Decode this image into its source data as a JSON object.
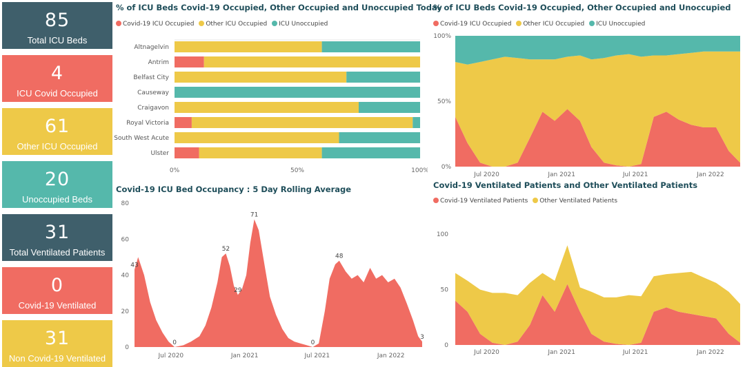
{
  "colors": {
    "covid": "#f06c62",
    "other": "#eec948",
    "unoccupied": "#55b8ab",
    "navy": "#3f5f6b"
  },
  "kpis": [
    {
      "value": "85",
      "label": "Total ICU Beds",
      "color": "#3f5f6b"
    },
    {
      "value": "4",
      "label": "ICU Covid Occupied",
      "color": "#f06c62"
    },
    {
      "value": "61",
      "label": "Other ICU Occupied",
      "color": "#eec948"
    },
    {
      "value": "20",
      "label": "Unoccupied Beds",
      "color": "#55b8ab"
    },
    {
      "value": "31",
      "label": "Total Ventilated Patients",
      "color": "#3f5f6b"
    },
    {
      "value": "0",
      "label": "Covid-19 Ventilated",
      "color": "#f06c62"
    },
    {
      "value": "31",
      "label": "Non Covid-19 Ventilated",
      "color": "#eec948"
    }
  ],
  "panels": {
    "today": {
      "title": "% of ICU Beds Covid-19 Occupied, Other Occupied and Unoccupied Today",
      "legend": [
        "Covid-19 ICU Occupied",
        "Other ICU Occupied",
        "ICU Unoccupied"
      ]
    },
    "overtime": {
      "title": "% of ICU Beds Covid-19 Occupied, Other Occupied and Unoccupied",
      "legend": [
        "Covid-19 ICU Occupied",
        "Other ICU Occupied",
        "ICU Unoccupied"
      ]
    },
    "rolling": {
      "title": "Covid-19 ICU Bed Occupancy : 5 Day Rolling Average"
    },
    "ventilated": {
      "title": "Covid-19 Ventilated Patients and Other Ventilated Patients",
      "legend": [
        "Covid-19 Ventilated Patients",
        "Other Ventilated Patients"
      ]
    }
  },
  "chart_data": [
    {
      "type": "bar",
      "orientation": "horizontal",
      "stacked": "100%",
      "title": "% of ICU Beds Covid-19 Occupied, Other Occupied and Unoccupied Today",
      "categories": [
        "Altnagelvin",
        "Antrim",
        "Belfast City",
        "Causeway",
        "Craigavon",
        "Royal Victoria",
        "South West Acute",
        "Ulster"
      ],
      "series": [
        {
          "name": "Covid-19 ICU Occupied",
          "values": [
            0,
            12,
            0,
            0,
            0,
            7,
            0,
            10
          ]
        },
        {
          "name": "Other ICU Occupied",
          "values": [
            60,
            88,
            70,
            0,
            75,
            90,
            67,
            50
          ]
        },
        {
          "name": "ICU Unoccupied",
          "values": [
            40,
            0,
            30,
            100,
            25,
            3,
            33,
            40
          ]
        }
      ],
      "xticks": [
        "0%",
        "50%",
        "100%"
      ],
      "xlim": [
        0,
        100
      ],
      "legend": "top-left"
    },
    {
      "type": "area",
      "stacked": "100%",
      "title": "% of ICU Beds Covid-19 Occupied, Other Occupied and Unoccupied",
      "x": [
        "2020-04",
        "2020-05",
        "2020-06",
        "2020-07",
        "2020-08",
        "2020-09",
        "2020-10",
        "2020-11",
        "2020-12",
        "2021-01",
        "2021-02",
        "2021-03",
        "2021-04",
        "2021-05",
        "2021-06",
        "2021-07",
        "2021-08",
        "2021-09",
        "2021-10",
        "2021-11",
        "2021-12",
        "2022-01",
        "2022-02",
        "2022-03"
      ],
      "series": [
        {
          "name": "Covid-19 ICU Occupied",
          "values": [
            38,
            18,
            3,
            0,
            0,
            3,
            22,
            42,
            35,
            44,
            35,
            15,
            3,
            1,
            0,
            2,
            38,
            42,
            36,
            32,
            30,
            30,
            12,
            3
          ]
        },
        {
          "name": "Other ICU Occupied",
          "values": [
            42,
            60,
            77,
            82,
            84,
            80,
            60,
            40,
            47,
            40,
            50,
            67,
            80,
            84,
            86,
            82,
            47,
            43,
            50,
            55,
            58,
            58,
            76,
            85
          ]
        },
        {
          "name": "ICU Unoccupied",
          "values": [
            20,
            22,
            20,
            18,
            16,
            17,
            18,
            18,
            18,
            16,
            15,
            18,
            17,
            15,
            14,
            16,
            15,
            15,
            14,
            13,
            12,
            12,
            12,
            12
          ]
        }
      ],
      "yticks": [
        "0%",
        "50%",
        "100%"
      ],
      "xticks": [
        "Jul 2020",
        "Jan 2021",
        "Jul 2021",
        "Jan 2022"
      ],
      "legend": "top-left"
    },
    {
      "type": "area",
      "title": "Covid-19 ICU Bed Occupancy : 5 Day Rolling Average",
      "x": [
        "2020-04-01",
        "2020-04-10",
        "2020-04-25",
        "2020-05-10",
        "2020-05-25",
        "2020-06-10",
        "2020-06-25",
        "2020-07-10",
        "2020-08-01",
        "2020-08-20",
        "2020-09-10",
        "2020-09-25",
        "2020-10-10",
        "2020-10-25",
        "2020-11-05",
        "2020-11-15",
        "2020-11-25",
        "2020-12-05",
        "2020-12-15",
        "2020-12-25",
        "2021-01-05",
        "2021-01-15",
        "2021-01-25",
        "2021-02-05",
        "2021-02-20",
        "2021-03-05",
        "2021-03-20",
        "2021-04-05",
        "2021-04-20",
        "2021-05-05",
        "2021-05-20",
        "2021-06-05",
        "2021-06-20",
        "2021-07-05",
        "2021-07-20",
        "2021-08-01",
        "2021-08-15",
        "2021-08-25",
        "2021-09-10",
        "2021-09-25",
        "2021-10-10",
        "2021-10-25",
        "2021-11-10",
        "2021-11-25",
        "2021-12-10",
        "2021-12-25",
        "2022-01-10",
        "2022-01-25",
        "2022-02-10",
        "2022-02-25",
        "2022-03-10",
        "2022-03-20"
      ],
      "values": [
        43,
        50,
        40,
        25,
        15,
        8,
        3,
        0,
        1,
        3,
        6,
        12,
        22,
        36,
        50,
        52,
        45,
        34,
        29,
        32,
        40,
        58,
        71,
        65,
        45,
        28,
        18,
        10,
        5,
        3,
        2,
        1,
        0,
        2,
        20,
        38,
        46,
        48,
        42,
        38,
        40,
        36,
        44,
        38,
        40,
        36,
        38,
        33,
        24,
        15,
        6,
        3
      ],
      "labels": [
        {
          "x": "2020-04-01",
          "text": "43"
        },
        {
          "x": "2020-07-10",
          "text": "0"
        },
        {
          "x": "2020-11-15",
          "text": "52"
        },
        {
          "x": "2020-12-15",
          "text": "29"
        },
        {
          "x": "2021-01-25",
          "text": "71"
        },
        {
          "x": "2021-06-20",
          "text": "0"
        },
        {
          "x": "2021-08-25",
          "text": "48"
        },
        {
          "x": "2022-03-20",
          "text": "3"
        }
      ],
      "yticks": [
        "0",
        "20",
        "40",
        "60",
        "80"
      ],
      "ylim": [
        0,
        80
      ],
      "xticks": [
        "Jul 2020",
        "Jan 2021",
        "Jul 2021",
        "Jan 2022"
      ]
    },
    {
      "type": "area",
      "stacked": true,
      "title": "Covid-19 Ventilated Patients and Other Ventilated Patients",
      "x": [
        "2020-04",
        "2020-05",
        "2020-06",
        "2020-07",
        "2020-08",
        "2020-09",
        "2020-10",
        "2020-11",
        "2020-12",
        "2021-01",
        "2021-02",
        "2021-03",
        "2021-04",
        "2021-05",
        "2021-06",
        "2021-07",
        "2021-08",
        "2021-09",
        "2021-10",
        "2021-11",
        "2021-12",
        "2022-01",
        "2022-02",
        "2022-03"
      ],
      "series": [
        {
          "name": "Covid-19 Ventilated Patients",
          "values": [
            40,
            30,
            10,
            2,
            0,
            3,
            18,
            45,
            30,
            55,
            30,
            10,
            3,
            1,
            0,
            2,
            30,
            34,
            30,
            28,
            26,
            24,
            10,
            2
          ]
        },
        {
          "name": "Other Ventilated Patients",
          "values": [
            25,
            28,
            40,
            45,
            47,
            42,
            38,
            20,
            28,
            35,
            22,
            38,
            40,
            42,
            45,
            42,
            32,
            30,
            35,
            38,
            35,
            32,
            38,
            35
          ]
        }
      ],
      "yticks": [
        "0",
        "50",
        "100"
      ],
      "xticks": [
        "Jul 2020",
        "Jan 2021",
        "Jul 2021",
        "Jan 2022"
      ],
      "legend": "top-left"
    }
  ]
}
